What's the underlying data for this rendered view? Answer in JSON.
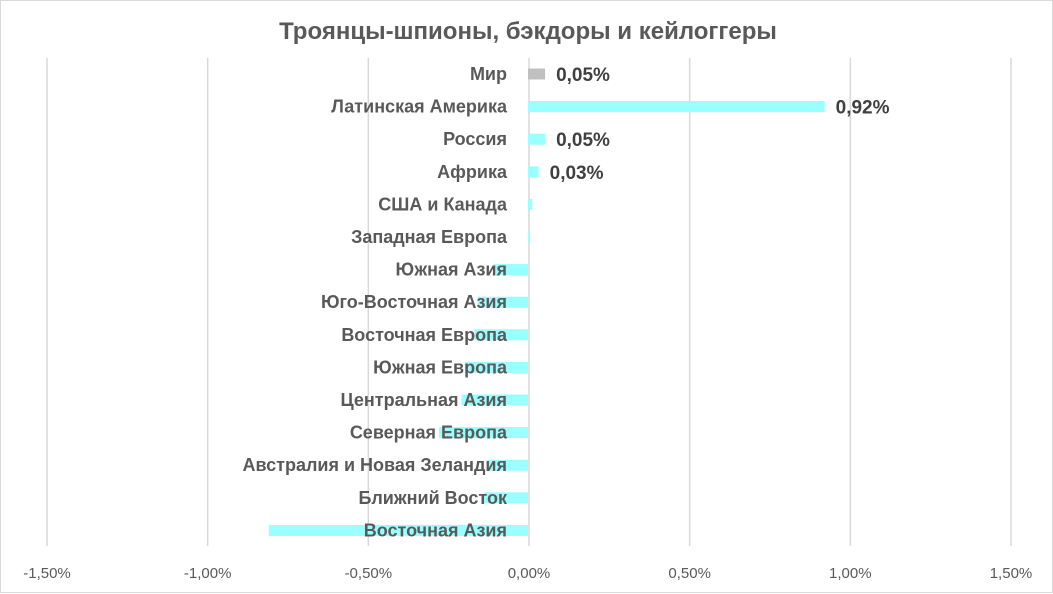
{
  "chart_data": {
    "type": "bar",
    "orientation": "horizontal",
    "title": "Троянцы-шпионы, бэкдоры и кейлоггеры",
    "xlabel": "",
    "ylabel": "",
    "xlim": [
      -1.5,
      1.5
    ],
    "x_ticks": [
      "-1,50%",
      "-1,00%",
      "-0,50%",
      "0,00%",
      "0,50%",
      "1,00%",
      "1,50%"
    ],
    "x_tick_values": [
      -1.5,
      -1.0,
      -0.5,
      0.0,
      0.5,
      1.0,
      1.5
    ],
    "grid": "vertical",
    "legend": "none",
    "categories": [
      "Мир",
      "Латинская Америка",
      "Россия",
      "Африка",
      "США и Канада",
      "Западная Европа",
      "Южная Азия",
      "Юго-Восточная Азия",
      "Восточная Европа",
      "Южная Европа",
      "Центральная Азия",
      "Северная Европа",
      "Австралия и Новая Зеландия",
      "Ближний Восток",
      "Восточная Азия"
    ],
    "values": [
      0.05,
      0.92,
      0.05,
      0.03,
      0.01,
      0.0,
      -0.11,
      -0.16,
      -0.17,
      -0.2,
      -0.21,
      -0.28,
      -0.13,
      -0.14,
      -0.81
    ],
    "data_labels": [
      "0,05%",
      "0,92%",
      "0,05%",
      "0,03%",
      "",
      "",
      "",
      "",
      "",
      "",
      "",
      "",
      "",
      "",
      ""
    ],
    "colors": {
      "world": "#c0c0c0",
      "bars": "#99ffff",
      "grid": "#d9d9d9",
      "text": "#595959"
    }
  }
}
